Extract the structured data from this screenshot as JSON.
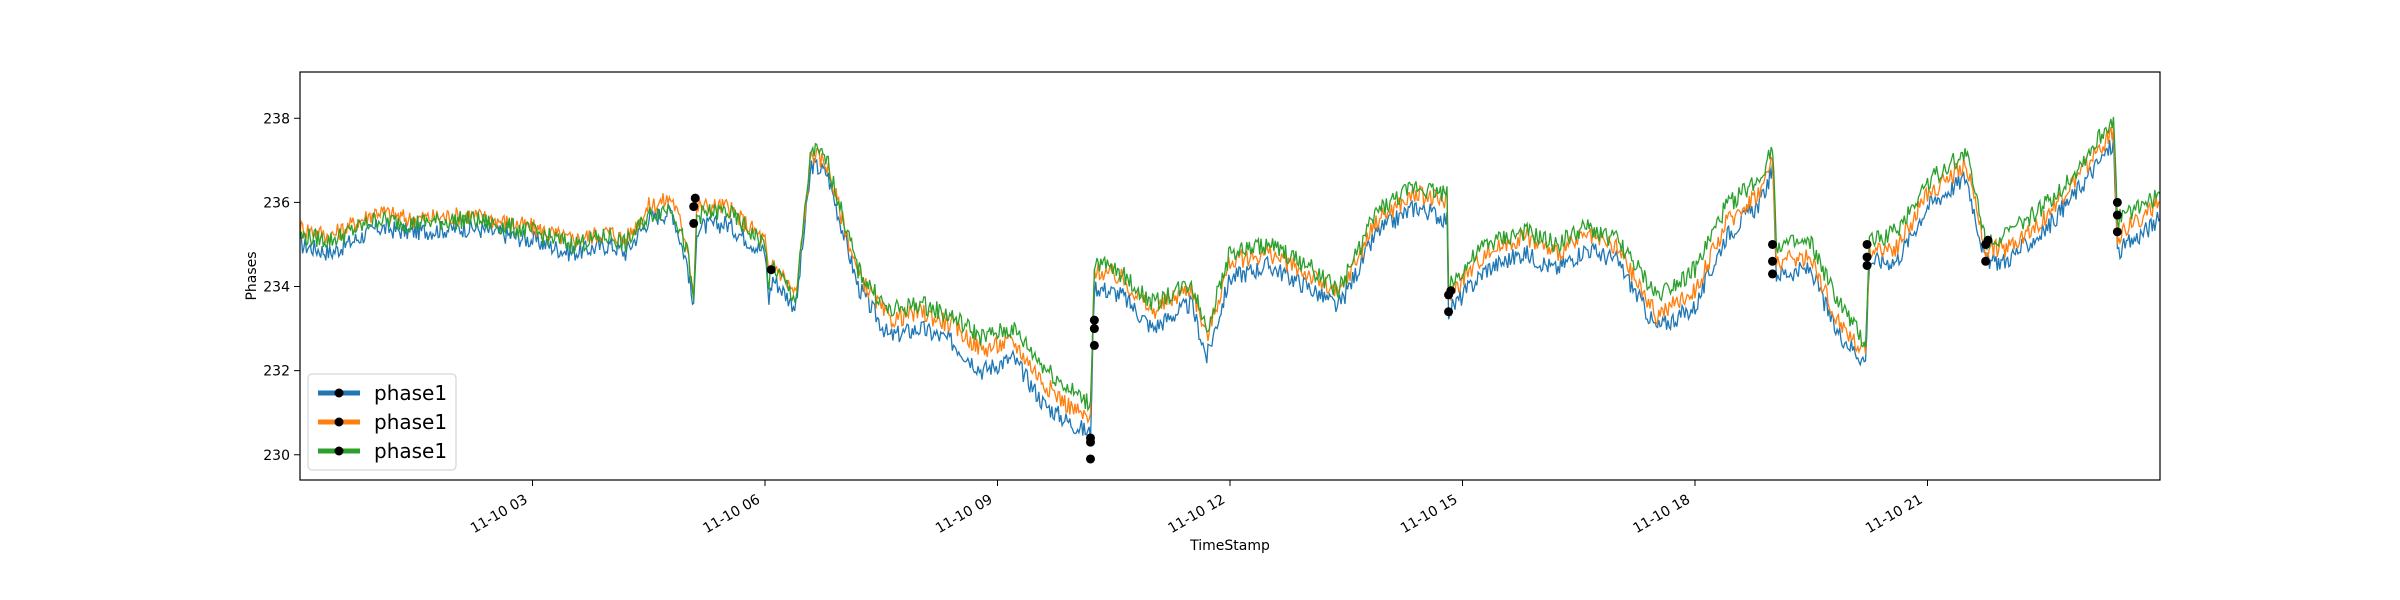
{
  "chart_data": {
    "type": "line",
    "title": "",
    "xlabel": "TimeStamp",
    "ylabel": "Phases",
    "x_unit": "hours",
    "xlim": [
      0,
      24
    ],
    "ylim": [
      229.4,
      239.1
    ],
    "x_ticks": [
      {
        "x": 3,
        "label": "11-10 03"
      },
      {
        "x": 6,
        "label": "11-10 06"
      },
      {
        "x": 9,
        "label": "11-10 09"
      },
      {
        "x": 12,
        "label": "11-10 12"
      },
      {
        "x": 15,
        "label": "11-10 15"
      },
      {
        "x": 18,
        "label": "11-10 18"
      },
      {
        "x": 21,
        "label": "11-10 21"
      }
    ],
    "y_ticks": [
      {
        "y": 230,
        "label": "230"
      },
      {
        "y": 232,
        "label": "232"
      },
      {
        "y": 234,
        "label": "234"
      },
      {
        "y": 236,
        "label": "236"
      },
      {
        "y": 238,
        "label": "238"
      }
    ],
    "grid": false,
    "legend": "lower-left",
    "colors": {
      "series1": "#1f77b4",
      "series2": "#ff7f0e",
      "series3": "#2ca02c",
      "marker": "#000000"
    },
    "series": [
      {
        "name": "phase1",
        "points": [
          [
            0,
            235.0
          ],
          [
            0.4,
            234.8
          ],
          [
            1.0,
            235.4
          ],
          [
            1.4,
            235.3
          ],
          [
            2.2,
            235.4
          ],
          [
            3.0,
            235.1
          ],
          [
            3.5,
            234.8
          ],
          [
            4.0,
            235.0
          ],
          [
            4.2,
            234.8
          ],
          [
            4.5,
            235.6
          ],
          [
            4.8,
            235.8
          ],
          [
            5.0,
            234.5
          ],
          [
            5.08,
            233.4
          ],
          [
            5.12,
            235.4
          ],
          [
            5.5,
            235.5
          ],
          [
            6.0,
            234.8
          ],
          [
            6.05,
            233.7
          ],
          [
            6.1,
            234.2
          ],
          [
            6.4,
            233.5
          ],
          [
            6.6,
            236.9
          ],
          [
            6.8,
            236.7
          ],
          [
            7.2,
            234.0
          ],
          [
            7.6,
            232.8
          ],
          [
            8.0,
            233.0
          ],
          [
            8.4,
            232.7
          ],
          [
            8.8,
            232.0
          ],
          [
            9.2,
            232.3
          ],
          [
            9.6,
            231.2
          ],
          [
            9.9,
            230.8
          ],
          [
            10.2,
            230.5
          ],
          [
            10.25,
            234.0
          ],
          [
            10.6,
            233.8
          ],
          [
            11.0,
            233.0
          ],
          [
            11.5,
            233.6
          ],
          [
            11.7,
            232.3
          ],
          [
            12.0,
            234.2
          ],
          [
            12.5,
            234.5
          ],
          [
            13.0,
            234.0
          ],
          [
            13.4,
            233.5
          ],
          [
            13.9,
            235.3
          ],
          [
            14.4,
            235.9
          ],
          [
            14.8,
            235.6
          ],
          [
            14.82,
            233.4
          ],
          [
            15.3,
            234.4
          ],
          [
            15.8,
            234.8
          ],
          [
            16.2,
            234.4
          ],
          [
            16.6,
            234.9
          ],
          [
            17.0,
            234.6
          ],
          [
            17.5,
            233.0
          ],
          [
            18.0,
            233.5
          ],
          [
            18.4,
            235.2
          ],
          [
            18.85,
            236.0
          ],
          [
            19.0,
            236.8
          ],
          [
            19.05,
            234.3
          ],
          [
            19.5,
            234.4
          ],
          [
            19.8,
            233.0
          ],
          [
            20.2,
            232.2
          ],
          [
            20.25,
            234.6
          ],
          [
            20.6,
            234.6
          ],
          [
            21.0,
            235.9
          ],
          [
            21.5,
            236.6
          ],
          [
            21.75,
            234.6
          ],
          [
            22.0,
            234.6
          ],
          [
            22.5,
            235.3
          ],
          [
            22.9,
            236.2
          ],
          [
            23.4,
            237.4
          ],
          [
            23.45,
            234.8
          ],
          [
            24.0,
            235.6
          ]
        ]
      },
      {
        "name": "phase1",
        "points": [
          [
            0,
            235.4
          ],
          [
            0.4,
            235.2
          ],
          [
            1.0,
            235.8
          ],
          [
            1.4,
            235.6
          ],
          [
            2.2,
            235.7
          ],
          [
            3.0,
            235.4
          ],
          [
            3.5,
            235.1
          ],
          [
            4.0,
            235.3
          ],
          [
            4.2,
            235.1
          ],
          [
            4.5,
            235.9
          ],
          [
            4.8,
            236.1
          ],
          [
            5.0,
            235.0
          ],
          [
            5.08,
            233.8
          ],
          [
            5.12,
            235.9
          ],
          [
            5.5,
            235.9
          ],
          [
            6.0,
            235.1
          ],
          [
            6.05,
            234.2
          ],
          [
            6.1,
            234.6
          ],
          [
            6.4,
            233.8
          ],
          [
            6.6,
            237.2
          ],
          [
            6.8,
            236.9
          ],
          [
            7.2,
            234.3
          ],
          [
            7.6,
            233.2
          ],
          [
            8.0,
            233.4
          ],
          [
            8.4,
            233.1
          ],
          [
            8.8,
            232.5
          ],
          [
            9.2,
            232.7
          ],
          [
            9.6,
            231.7
          ],
          [
            9.9,
            231.2
          ],
          [
            10.2,
            230.8
          ],
          [
            10.25,
            234.4
          ],
          [
            10.6,
            234.2
          ],
          [
            11.0,
            233.4
          ],
          [
            11.5,
            234.0
          ],
          [
            11.7,
            232.8
          ],
          [
            12.0,
            234.6
          ],
          [
            12.5,
            234.8
          ],
          [
            13.0,
            234.3
          ],
          [
            13.4,
            233.8
          ],
          [
            13.9,
            235.6
          ],
          [
            14.4,
            236.2
          ],
          [
            14.8,
            236.0
          ],
          [
            14.82,
            233.8
          ],
          [
            15.3,
            234.8
          ],
          [
            15.8,
            235.2
          ],
          [
            16.2,
            234.8
          ],
          [
            16.6,
            235.2
          ],
          [
            17.0,
            234.9
          ],
          [
            17.5,
            233.3
          ],
          [
            18.0,
            233.9
          ],
          [
            18.4,
            235.5
          ],
          [
            18.85,
            236.3
          ],
          [
            19.0,
            237.0
          ],
          [
            19.05,
            234.6
          ],
          [
            19.5,
            234.7
          ],
          [
            19.8,
            233.3
          ],
          [
            20.2,
            232.4
          ],
          [
            20.25,
            234.9
          ],
          [
            20.6,
            234.9
          ],
          [
            21.0,
            236.2
          ],
          [
            21.5,
            236.9
          ],
          [
            21.75,
            234.9
          ],
          [
            22.0,
            234.9
          ],
          [
            22.5,
            235.6
          ],
          [
            22.9,
            236.5
          ],
          [
            23.4,
            237.7
          ],
          [
            23.45,
            235.2
          ],
          [
            24.0,
            236.0
          ]
        ]
      },
      {
        "name": "phase1",
        "points": [
          [
            0,
            235.2
          ],
          [
            0.4,
            235.1
          ],
          [
            1.0,
            235.6
          ],
          [
            1.4,
            235.5
          ],
          [
            2.2,
            235.6
          ],
          [
            3.0,
            235.3
          ],
          [
            3.5,
            235.0
          ],
          [
            4.0,
            235.2
          ],
          [
            4.2,
            235.0
          ],
          [
            4.5,
            235.7
          ],
          [
            4.8,
            235.9
          ],
          [
            5.0,
            234.8
          ],
          [
            5.08,
            233.6
          ],
          [
            5.12,
            235.7
          ],
          [
            5.5,
            235.8
          ],
          [
            6.0,
            235.0
          ],
          [
            6.05,
            234.0
          ],
          [
            6.1,
            234.5
          ],
          [
            6.4,
            233.7
          ],
          [
            6.6,
            237.3
          ],
          [
            6.8,
            237.0
          ],
          [
            7.2,
            234.4
          ],
          [
            7.6,
            233.4
          ],
          [
            8.0,
            233.6
          ],
          [
            8.4,
            233.3
          ],
          [
            8.8,
            232.8
          ],
          [
            9.2,
            233.0
          ],
          [
            9.6,
            232.1
          ],
          [
            9.9,
            231.6
          ],
          [
            10.2,
            231.2
          ],
          [
            10.25,
            234.6
          ],
          [
            10.6,
            234.3
          ],
          [
            11.0,
            233.6
          ],
          [
            11.5,
            234.1
          ],
          [
            11.7,
            233.0
          ],
          [
            12.0,
            234.8
          ],
          [
            12.5,
            235.0
          ],
          [
            13.0,
            234.5
          ],
          [
            13.4,
            233.9
          ],
          [
            13.9,
            235.8
          ],
          [
            14.4,
            236.4
          ],
          [
            14.8,
            236.2
          ],
          [
            14.82,
            234.0
          ],
          [
            15.3,
            235.0
          ],
          [
            15.8,
            235.3
          ],
          [
            16.2,
            235.0
          ],
          [
            16.6,
            235.4
          ],
          [
            17.0,
            235.1
          ],
          [
            17.5,
            233.8
          ],
          [
            18.0,
            234.4
          ],
          [
            18.4,
            235.9
          ],
          [
            18.85,
            236.6
          ],
          [
            19.0,
            237.4
          ],
          [
            19.05,
            235.0
          ],
          [
            19.5,
            235.0
          ],
          [
            19.8,
            233.8
          ],
          [
            20.2,
            232.6
          ],
          [
            20.25,
            235.1
          ],
          [
            20.6,
            235.3
          ],
          [
            21.0,
            236.5
          ],
          [
            21.5,
            237.2
          ],
          [
            21.75,
            235.1
          ],
          [
            22.0,
            235.2
          ],
          [
            22.5,
            235.9
          ],
          [
            22.9,
            236.7
          ],
          [
            23.4,
            238.0
          ],
          [
            23.45,
            235.6
          ],
          [
            24.0,
            236.2
          ]
        ]
      }
    ],
    "markers": [
      {
        "x": 5.08,
        "y": 235.5
      },
      {
        "x": 5.08,
        "y": 235.9
      },
      {
        "x": 5.1,
        "y": 236.1
      },
      {
        "x": 6.08,
        "y": 234.4
      },
      {
        "x": 10.2,
        "y": 229.9
      },
      {
        "x": 10.2,
        "y": 230.4
      },
      {
        "x": 10.2,
        "y": 230.3
      },
      {
        "x": 10.25,
        "y": 232.6
      },
      {
        "x": 10.25,
        "y": 233.0
      },
      {
        "x": 10.25,
        "y": 233.2
      },
      {
        "x": 14.82,
        "y": 233.4
      },
      {
        "x": 14.82,
        "y": 233.8
      },
      {
        "x": 14.85,
        "y": 233.9
      },
      {
        "x": 19.0,
        "y": 234.3
      },
      {
        "x": 19.0,
        "y": 234.6
      },
      {
        "x": 19.0,
        "y": 235.0
      },
      {
        "x": 20.22,
        "y": 234.5
      },
      {
        "x": 20.22,
        "y": 234.7
      },
      {
        "x": 20.22,
        "y": 235.0
      },
      {
        "x": 21.75,
        "y": 234.6
      },
      {
        "x": 21.75,
        "y": 235.0
      },
      {
        "x": 21.78,
        "y": 235.1
      },
      {
        "x": 23.45,
        "y": 235.3
      },
      {
        "x": 23.45,
        "y": 235.7
      },
      {
        "x": 23.45,
        "y": 236.0
      }
    ]
  }
}
